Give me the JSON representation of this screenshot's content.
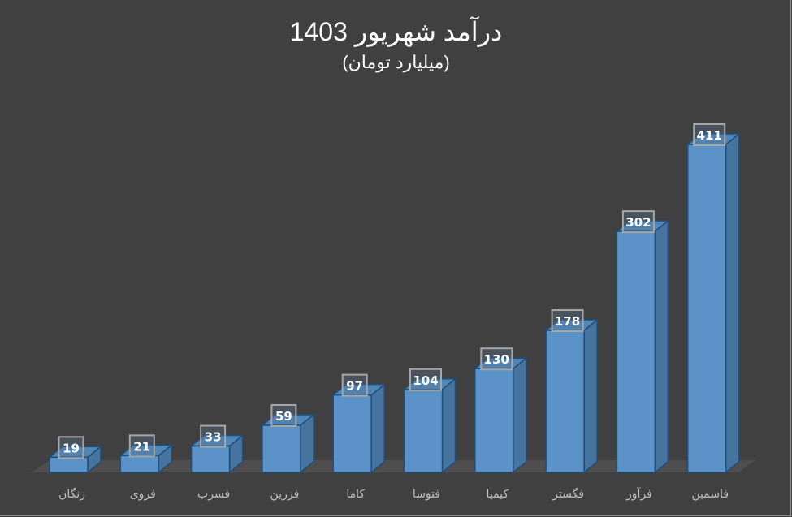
{
  "chart_data": {
    "type": "bar",
    "style": "3d-column",
    "title": "درآمد شهریور 1403",
    "subtitle": "(میلیارد تومان)",
    "xlabel": "",
    "ylabel": "",
    "categories": [
      "زنگان",
      "فروی",
      "فسرب",
      "فزرین",
      "کاما",
      "فتوسا",
      "کیمیا",
      "فگستر",
      "فرآور",
      "فاسمین"
    ],
    "values": [
      19,
      21,
      33,
      59,
      97,
      104,
      130,
      178,
      302,
      411
    ],
    "ylim": [
      0,
      411
    ],
    "grid": false,
    "legend": "none",
    "data_labels": true
  },
  "colors": {
    "background": "#404040",
    "bar_front": "#5b93c8",
    "bar_side": "#46749f",
    "bar_top": "#5186b8",
    "bar_edge": "#1f4e79",
    "floor": "#4f4d4d",
    "label_box_border": "#a6a6a6",
    "label_text": "#ffffff",
    "axis_text": "#bfbfbf"
  }
}
